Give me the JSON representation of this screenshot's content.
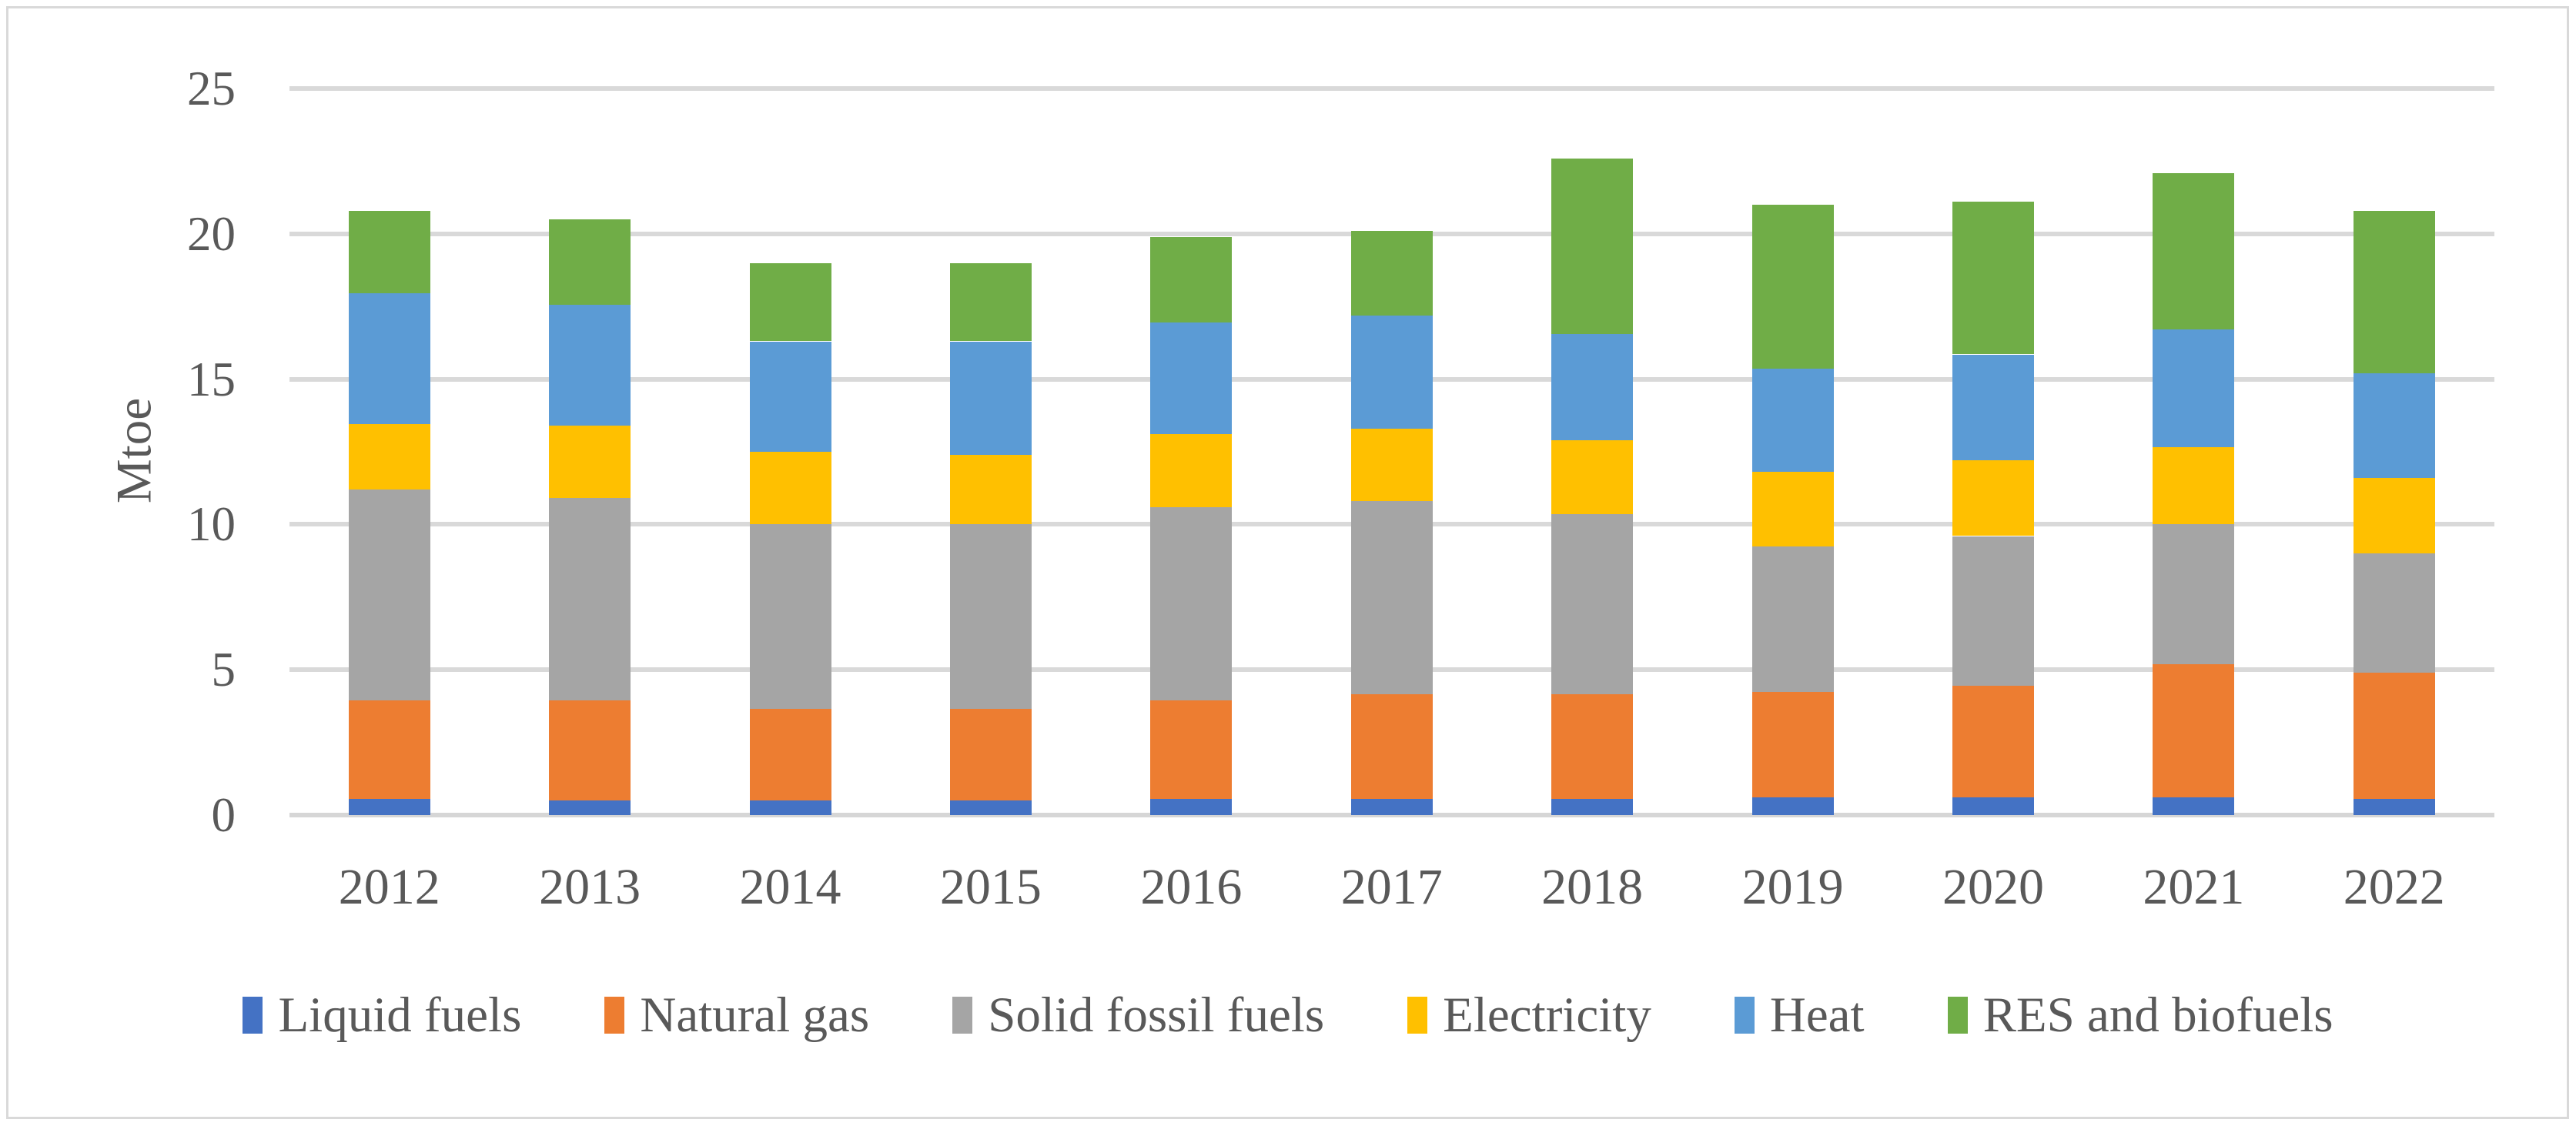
{
  "figure": {
    "background": "#ffffff",
    "border_color": "#d9d9d9",
    "text_color": "#595959",
    "gridline_color": "#d9d9d9"
  },
  "chart_data": {
    "type": "bar",
    "stacked": true,
    "title": "",
    "xlabel": "",
    "ylabel": "Mtoe",
    "grid": true,
    "legend_position": "bottom",
    "categories": [
      "2012",
      "2013",
      "2014",
      "2015",
      "2016",
      "2017",
      "2018",
      "2019",
      "2020",
      "2021",
      "2022"
    ],
    "series": [
      {
        "name": "Liquid fuels",
        "color": "#4472C4",
        "values": [
          0.55,
          0.5,
          0.5,
          0.5,
          0.55,
          0.55,
          0.55,
          0.6,
          0.6,
          0.6,
          0.55
        ]
      },
      {
        "name": "Natural gas",
        "color": "#ED7D31",
        "values": [
          3.4,
          3.45,
          3.15,
          3.15,
          3.4,
          3.6,
          3.6,
          3.65,
          3.85,
          4.6,
          4.35
        ]
      },
      {
        "name": "Solid fossil fuels",
        "color": "#A5A5A5",
        "values": [
          7.25,
          6.95,
          6.35,
          6.35,
          6.65,
          6.65,
          6.2,
          5.0,
          5.15,
          4.8,
          4.1
        ]
      },
      {
        "name": "Electricity",
        "color": "#FFC000",
        "values": [
          2.25,
          2.5,
          2.5,
          2.4,
          2.5,
          2.5,
          2.55,
          2.55,
          2.6,
          2.65,
          2.6
        ]
      },
      {
        "name": "Heat",
        "color": "#5B9BD5",
        "values": [
          4.5,
          4.15,
          3.8,
          3.9,
          3.85,
          3.9,
          3.65,
          3.55,
          3.65,
          4.05,
          3.6
        ]
      },
      {
        "name": "RES and biofuels",
        "color": "#70AD47",
        "values": [
          2.85,
          2.95,
          2.7,
          2.7,
          2.95,
          2.9,
          6.05,
          5.65,
          5.25,
          5.4,
          5.6
        ]
      }
    ],
    "totals": [
      20.8,
      20.5,
      19.0,
      19.0,
      19.9,
      20.1,
      22.6,
      21.0,
      21.1,
      22.1,
      20.8
    ],
    "y_axis": {
      "min": 0,
      "max": 25,
      "step": 5,
      "tick_labels": [
        "0",
        "5",
        "10",
        "15",
        "20",
        "25"
      ]
    }
  }
}
